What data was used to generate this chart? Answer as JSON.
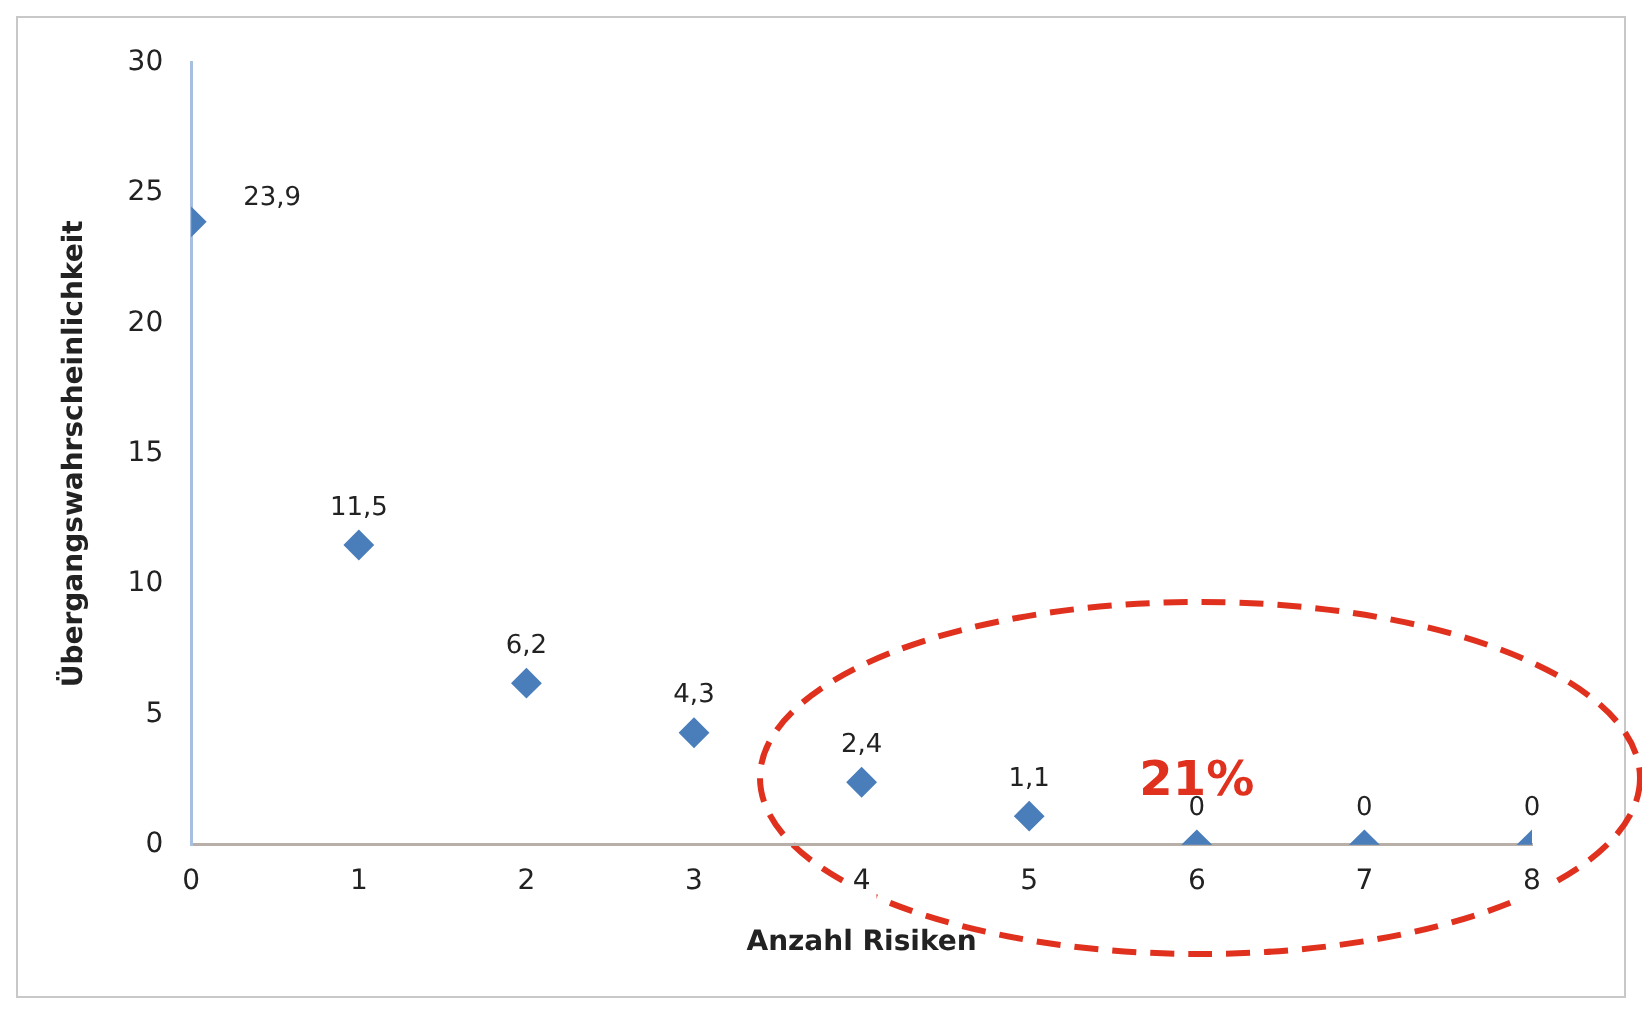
{
  "chart_data": {
    "type": "scatter",
    "xlabel": "Anzahl Risiken",
    "ylabel": "Übergangswahrscheinlichkeit",
    "x": [
      0,
      1,
      2,
      3,
      4,
      5,
      6,
      7,
      8
    ],
    "series": [
      {
        "color": "#4a7ebb",
        "values": [
          23.9,
          11.5,
          6.2,
          4.3,
          2.4,
          1.1,
          0,
          0,
          0
        ],
        "value_labels": [
          "23,9",
          "11,5",
          "6,2",
          "4,3",
          "2,4",
          "1,1",
          "0",
          "0",
          "0"
        ]
      }
    ],
    "xlim": [
      0,
      8
    ],
    "xticks": [
      0,
      1,
      2,
      3,
      4,
      5,
      6,
      7,
      8
    ],
    "ylim": [
      0,
      30
    ],
    "yticks": [
      0,
      5,
      10,
      15,
      20,
      25,
      30
    ],
    "grid": false,
    "legend": false,
    "marker": "diamond",
    "annotations": [
      "21%"
    ]
  }
}
